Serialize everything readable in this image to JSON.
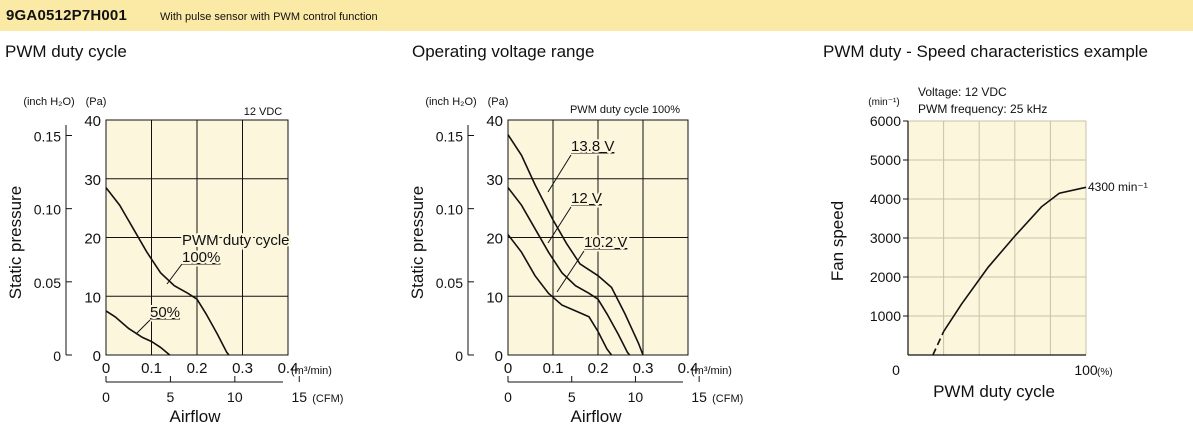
{
  "header": {
    "model": "9GA0512P7H001",
    "description": "With pulse sensor with PWM control function"
  },
  "chart_data": [
    {
      "type": "line",
      "title": "PWM duty cycle",
      "xlabel": "Airflow",
      "ylabel": "Static pressure",
      "x_unit": "(m³/min)",
      "x2_unit": "(CFM)",
      "y_unit": "(Pa)",
      "y2_unit": "(inch H₂O)",
      "xlim": [
        0,
        0.4
      ],
      "ylim": [
        0,
        40
      ],
      "x_ticks": [
        "0",
        "0.1",
        "0.2",
        "0.3",
        "0.4"
      ],
      "x2_ticks": [
        "0",
        "5",
        "10",
        "15"
      ],
      "y_ticks": [
        "0",
        "10",
        "20",
        "30",
        "40"
      ],
      "y2_ticks": [
        "0",
        "0.05",
        "0.10",
        "0.15"
      ],
      "grid": true,
      "annotations": [
        "12 VDC",
        "PWM duty cycle"
      ],
      "series": [
        {
          "name": "100%",
          "points": [
            [
              0,
              28.5
            ],
            [
              0.03,
              25.5
            ],
            [
              0.06,
              21.5
            ],
            [
              0.09,
              17.5
            ],
            [
              0.12,
              14
            ],
            [
              0.15,
              11.8
            ],
            [
              0.18,
              10.5
            ],
            [
              0.2,
              9.5
            ],
            [
              0.22,
              7
            ],
            [
              0.245,
              3.5
            ],
            [
              0.265,
              0.5
            ],
            [
              0.27,
              0
            ]
          ]
        },
        {
          "name": "50%",
          "points": [
            [
              0,
              7.5
            ],
            [
              0.02,
              6.5
            ],
            [
              0.05,
              4.5
            ],
            [
              0.08,
              3
            ],
            [
              0.1,
              2.3
            ],
            [
              0.12,
              1.3
            ],
            [
              0.14,
              0
            ]
          ]
        }
      ]
    },
    {
      "type": "line",
      "title": "Operating voltage range",
      "xlabel": "Airflow",
      "ylabel": "Static pressure",
      "x_unit": "(m³/min)",
      "x2_unit": "(CFM)",
      "y_unit": "(Pa)",
      "y2_unit": "(inch H₂O)",
      "xlim": [
        0,
        0.4
      ],
      "ylim": [
        0,
        40
      ],
      "x_ticks": [
        "0",
        "0.1",
        "0.2",
        "0.3",
        "0.4"
      ],
      "x2_ticks": [
        "0",
        "5",
        "10",
        "15"
      ],
      "y_ticks": [
        "0",
        "10",
        "20",
        "30",
        "40"
      ],
      "y2_ticks": [
        "0",
        "0.05",
        "0.10",
        "0.15"
      ],
      "grid": true,
      "annotations": [
        "PWM duty cycle 100%"
      ],
      "series": [
        {
          "name": "13.8 V",
          "points": [
            [
              0,
              37.5
            ],
            [
              0.03,
              34
            ],
            [
              0.06,
              29
            ],
            [
              0.1,
              23
            ],
            [
              0.13,
              19
            ],
            [
              0.16,
              15.5
            ],
            [
              0.2,
              13.5
            ],
            [
              0.23,
              11.5
            ],
            [
              0.26,
              7
            ],
            [
              0.29,
              2
            ],
            [
              0.3,
              0
            ]
          ]
        },
        {
          "name": "12 V",
          "points": [
            [
              0,
              28.5
            ],
            [
              0.03,
              25.5
            ],
            [
              0.06,
              21.5
            ],
            [
              0.09,
              17.5
            ],
            [
              0.12,
              14
            ],
            [
              0.15,
              11.8
            ],
            [
              0.18,
              10.5
            ],
            [
              0.2,
              9.5
            ],
            [
              0.22,
              7
            ],
            [
              0.245,
              3.5
            ],
            [
              0.265,
              0.5
            ],
            [
              0.27,
              0
            ]
          ]
        },
        {
          "name": "10.2 V",
          "points": [
            [
              0,
              20.5
            ],
            [
              0.03,
              17.5
            ],
            [
              0.06,
              13.5
            ],
            [
              0.09,
              10.5
            ],
            [
              0.12,
              8.5
            ],
            [
              0.15,
              7.5
            ],
            [
              0.18,
              6.5
            ],
            [
              0.2,
              4
            ],
            [
              0.22,
              1
            ],
            [
              0.23,
              0
            ]
          ]
        }
      ]
    },
    {
      "type": "line",
      "title": "PWM duty - Speed characteristics example",
      "xlabel": "PWM duty cycle",
      "ylabel": "Fan speed",
      "x_unit": "(%)",
      "y_unit": "(min⁻¹)",
      "xlim": [
        0,
        100
      ],
      "ylim": [
        0,
        6000
      ],
      "x_ticks": [
        "0",
        "100"
      ],
      "y_ticks": [
        "1000",
        "2000",
        "3000",
        "4000",
        "5000",
        "6000"
      ],
      "grid": true,
      "annotations": [
        "Voltage: 12 VDC",
        "PWM frequency: 25 kHz",
        "4300 min⁻¹"
      ],
      "series": [
        {
          "name": "",
          "dashed_points": [
            [
              14,
              0
            ],
            [
              20,
              600
            ]
          ],
          "points": [
            [
              20,
              600
            ],
            [
              30,
              1300
            ],
            [
              45,
              2250
            ],
            [
              60,
              3050
            ],
            [
              75,
              3800
            ],
            [
              85,
              4150
            ],
            [
              100,
              4300
            ]
          ]
        }
      ]
    }
  ]
}
